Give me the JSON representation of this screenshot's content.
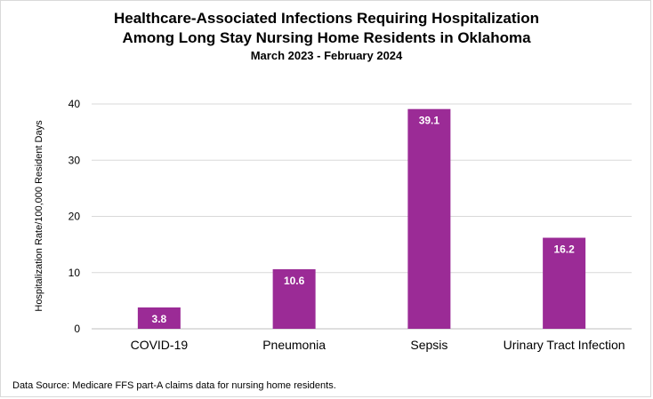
{
  "chart_data": {
    "type": "bar",
    "title_lines": [
      "Healthcare-Associated Infections Requiring Hospitalization",
      "Among Long Stay Nursing Home Residents in Oklahoma"
    ],
    "subtitle": "March 2023 - February 2024",
    "xlabel": "",
    "ylabel": "Hospitalization Rate/100,000 Resident Days",
    "ylim": [
      0,
      40
    ],
    "yticks": [
      0,
      10,
      20,
      30,
      40
    ],
    "grid": true,
    "categories": [
      "COVID-19",
      "Pneumonia",
      "Sepsis",
      "Urinary Tract Infection"
    ],
    "values": [
      3.8,
      10.6,
      39.1,
      16.2
    ],
    "value_labels": [
      "3.8",
      "10.6",
      "39.1",
      "16.2"
    ],
    "bar_color": "#9B2B96",
    "label_color": "#ffffff"
  },
  "footer": "Data Source: Medicare FFS part-A claims data for nursing home residents."
}
